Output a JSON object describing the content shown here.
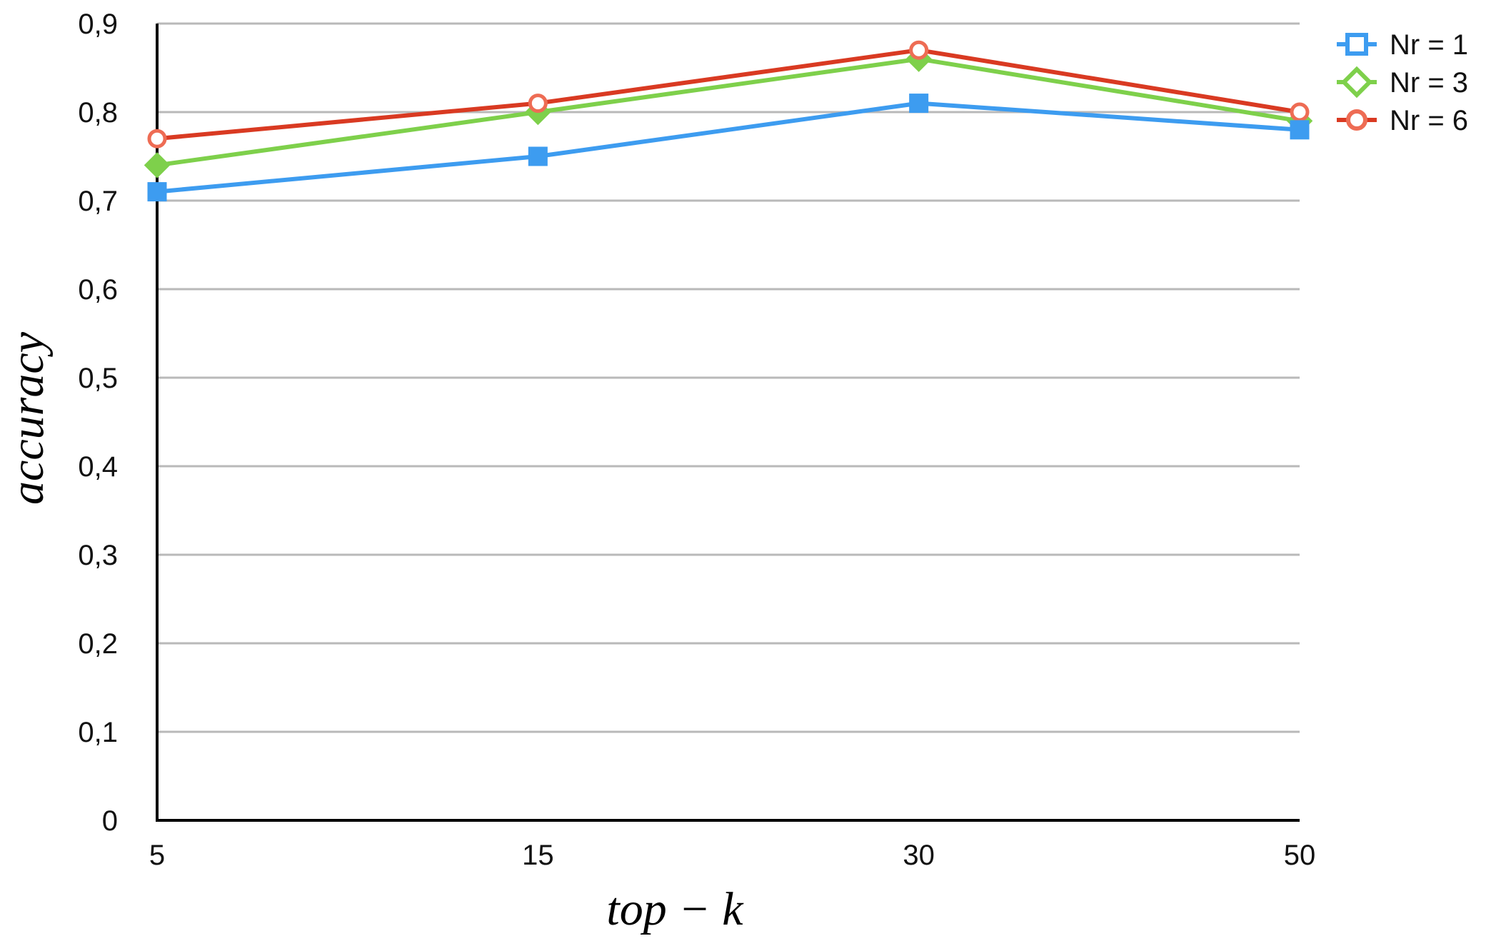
{
  "chart_data": {
    "type": "line",
    "title": "",
    "xlabel": "top − k",
    "ylabel": "accuracy",
    "categories": [
      "5",
      "15",
      "30",
      "50"
    ],
    "ylim": [
      0,
      0.9
    ],
    "yticks": [
      0,
      0.1,
      0.2,
      0.3,
      0.4,
      0.5,
      0.6,
      0.7,
      0.8,
      0.9
    ],
    "ytick_labels": [
      "0",
      "0,1",
      "0,2",
      "0,3",
      "0,4",
      "0,5",
      "0,6",
      "0,7",
      "0,8",
      "0,9"
    ],
    "grid": true,
    "legend_position": "top-right",
    "series": [
      {
        "name": "Nr = 1",
        "values": [
          0.71,
          0.75,
          0.81,
          0.78
        ],
        "color": "#3d9cf0",
        "marker": "square"
      },
      {
        "name": "Nr = 3",
        "values": [
          0.74,
          0.8,
          0.86,
          0.79
        ],
        "color": "#7ed04b",
        "marker": "diamond"
      },
      {
        "name": "Nr = 6",
        "values": [
          0.77,
          0.81,
          0.87,
          0.8
        ],
        "color": "#d93a22",
        "marker_color": "#ee6c54",
        "marker": "circle"
      }
    ]
  }
}
